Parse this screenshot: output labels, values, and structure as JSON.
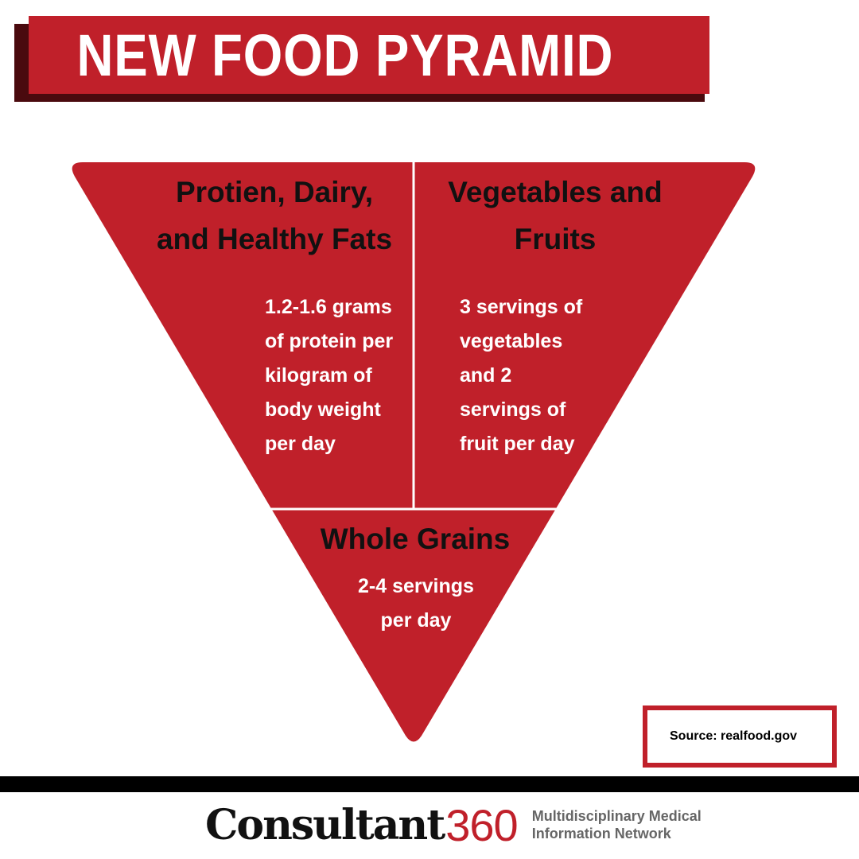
{
  "header": {
    "title": "NEW FOOD PYRAMID"
  },
  "pyramid": {
    "sections": [
      {
        "name": "Protien, Dairy, and Healthy Fats",
        "label_lines": [
          "Protien, Dairy,",
          "and Healthy Fats"
        ],
        "detail_lines": [
          "1.2-1.6 grams",
          "of protein per",
          "kilogram of",
          "body weight",
          "per day"
        ]
      },
      {
        "name": "Vegetables and Fruits",
        "label_lines": [
          "Vegetables and",
          "Fruits"
        ],
        "detail_lines": [
          "3 servings of",
          "vegetables",
          "and 2",
          "servings of",
          "fruit per day"
        ]
      },
      {
        "name": "Whole Grains",
        "label_lines": [
          "Whole Grains"
        ],
        "detail_lines": [
          "2-4 servings",
          "per day"
        ]
      }
    ]
  },
  "source": {
    "text": "Source: realfood.gov"
  },
  "footer": {
    "brand_name": "Consultant",
    "brand_number": "360",
    "tagline_lines": [
      "Multidisciplinary Medical",
      "Information Network"
    ]
  },
  "colors": {
    "accent": "#c0202a",
    "accent_dark": "#4a0a0e",
    "background": "#ffffff",
    "footer_bar": "#000000"
  }
}
